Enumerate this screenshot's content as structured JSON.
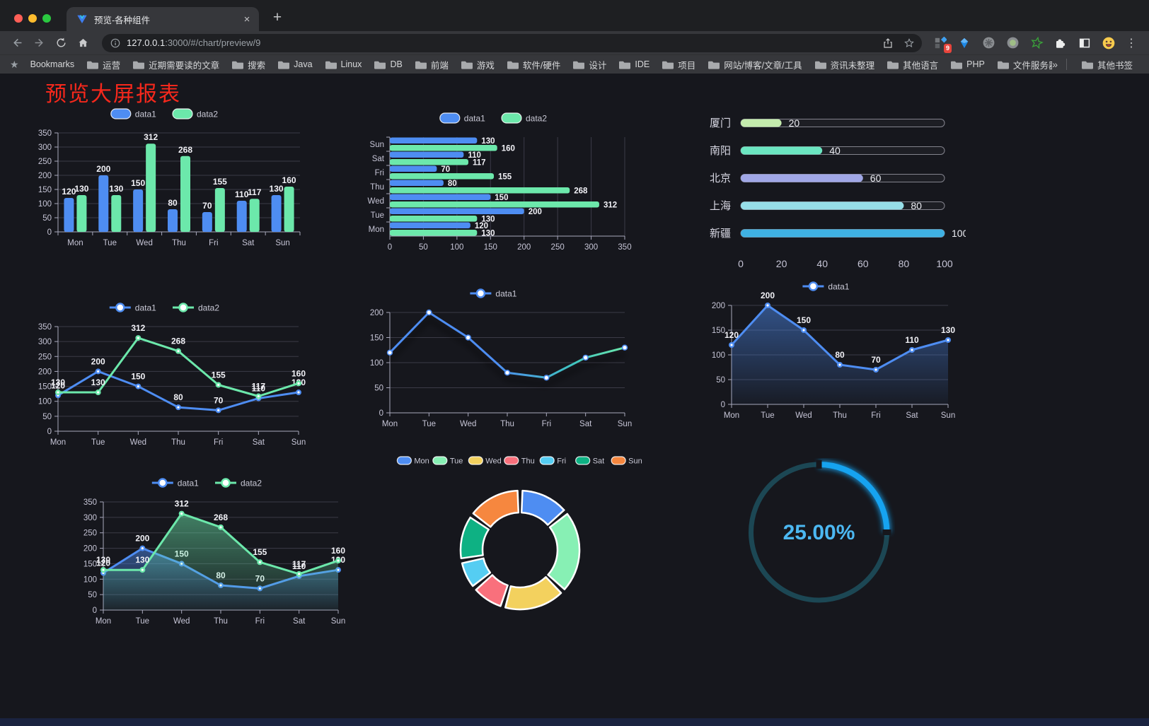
{
  "browser": {
    "tab_title": "预览-各种组件",
    "url_host": "127.0.0.1",
    "url_rest": ":3000/#/chart/preview/9",
    "extension_badge": "9",
    "bookmarks_label": "Bookmarks",
    "bookmarks": [
      "运营",
      "近期需要读的文章",
      "搜索",
      "Java",
      "Linux",
      "DB",
      "前端",
      "游戏",
      "软件/硬件",
      "设计",
      "IDE",
      "项目",
      "网站/博客/文章/工具",
      "资讯未整理",
      "其他语言",
      "PHP",
      "文件服务器"
    ],
    "other_bookmarks_label": "其他书签"
  },
  "glyphs": {
    "tab_close": "×",
    "new_tab": "+",
    "overflow_chevron": "»",
    "menu_dots": "⋮",
    "bookmarks_star": "★"
  },
  "page": {
    "title": "预览大屏报表",
    "title_color": "#f6281c"
  },
  "colors": {
    "series_blue": "#4e8df2",
    "series_green": "#6ce8ab",
    "axis_text": "#c6c5d6",
    "grid_line": "#3b3b47",
    "axis_line": "#a8a8bc",
    "value_label": "#f2f2f7"
  },
  "chart_data": [
    {
      "id": "grouped-bar",
      "type": "bar",
      "legend_marker": "rect",
      "categories": [
        "Mon",
        "Tue",
        "Wed",
        "Thu",
        "Fri",
        "Sat",
        "Sun"
      ],
      "series": [
        {
          "name": "data1",
          "color": "#4e8df2",
          "values": [
            120,
            200,
            150,
            80,
            70,
            110,
            130
          ]
        },
        {
          "name": "data2",
          "color": "#6ce8ab",
          "values": [
            130,
            130,
            312,
            268,
            155,
            117,
            160
          ]
        }
      ],
      "ylim": [
        0,
        350
      ],
      "ystep": 50,
      "grid": true,
      "legend_position": "top",
      "value_labels": true
    },
    {
      "id": "horizontal-bar",
      "type": "hbar",
      "legend_marker": "rect",
      "categories": [
        "Mon",
        "Tue",
        "Wed",
        "Thu",
        "Fri",
        "Sat",
        "Sun"
      ],
      "axis_order_top_to_bottom": [
        "Sun",
        "Sat",
        "Fri",
        "Thu",
        "Wed",
        "Tue",
        "Mon"
      ],
      "series": [
        {
          "name": "data1",
          "color": "#4e8df2",
          "values": [
            120,
            200,
            150,
            80,
            70,
            110,
            130
          ]
        },
        {
          "name": "data2",
          "color": "#6ce8ab",
          "values": [
            130,
            130,
            312,
            268,
            155,
            117,
            160
          ]
        }
      ],
      "xlim": [
        0,
        350
      ],
      "xstep": 50,
      "grid": true,
      "legend_position": "top",
      "value_labels": true
    },
    {
      "id": "city-progress",
      "type": "progress",
      "rows": [
        {
          "label": "厦门",
          "value": 20,
          "color": "#c4ebad"
        },
        {
          "label": "南阳",
          "value": 40,
          "color": "#6be6c1"
        },
        {
          "label": "北京",
          "value": 60,
          "color": "#a0a7e6"
        },
        {
          "label": "上海",
          "value": 80,
          "color": "#96dee8"
        },
        {
          "label": "新疆",
          "value": 100,
          "color": "#3fb1e3"
        }
      ],
      "xlim": [
        0,
        100
      ],
      "xticks": [
        0,
        20,
        40,
        60,
        80,
        100
      ]
    },
    {
      "id": "line-two-series",
      "type": "line",
      "legend_marker": "line",
      "categories": [
        "Mon",
        "Tue",
        "Wed",
        "Thu",
        "Fri",
        "Sat",
        "Sun"
      ],
      "series": [
        {
          "name": "data1",
          "color": "#4e8df2",
          "values": [
            120,
            200,
            150,
            80,
            70,
            110,
            130
          ]
        },
        {
          "name": "data2",
          "color": "#6ce8ab",
          "values": [
            130,
            130,
            312,
            268,
            155,
            117,
            160
          ]
        }
      ],
      "ylim": [
        0,
        350
      ],
      "ystep": 50,
      "grid": true,
      "legend_position": "top",
      "value_labels": true
    },
    {
      "id": "gradient-line",
      "type": "line",
      "legend_marker": "line",
      "categories": [
        "Mon",
        "Tue",
        "Wed",
        "Thu",
        "Fri",
        "Sat",
        "Sun"
      ],
      "series": [
        {
          "name": "data1",
          "color": "#4e8df2",
          "marker": "hollow",
          "shadow": true,
          "gradient_stops": [
            {
              "offset": 0,
              "color": "#4e8df2"
            },
            {
              "offset": 0.45,
              "color": "#4e8df2"
            },
            {
              "offset": 0.78,
              "color": "#3fc4c0"
            },
            {
              "offset": 1,
              "color": "#6ce8ab"
            }
          ],
          "values": [
            120,
            200,
            150,
            80,
            70,
            110,
            130
          ]
        }
      ],
      "ylim": [
        0,
        200
      ],
      "ystep": 50,
      "grid": true,
      "legend_position": "top",
      "value_labels": false
    },
    {
      "id": "area-single",
      "type": "line",
      "legend_marker": "line",
      "categories": [
        "Mon",
        "Tue",
        "Wed",
        "Thu",
        "Fri",
        "Sat",
        "Sun"
      ],
      "series": [
        {
          "name": "data1",
          "color": "#4e8df2",
          "area": true,
          "values": [
            120,
            200,
            150,
            80,
            70,
            110,
            130
          ]
        }
      ],
      "ylim": [
        0,
        200
      ],
      "ystep": 50,
      "grid": true,
      "legend_position": "top",
      "value_labels": true
    },
    {
      "id": "area-two-series",
      "type": "line",
      "legend_marker": "line",
      "categories": [
        "Mon",
        "Tue",
        "Wed",
        "Thu",
        "Fri",
        "Sat",
        "Sun"
      ],
      "series": [
        {
          "name": "data1",
          "color": "#4e8df2",
          "area": true,
          "values": [
            120,
            200,
            150,
            80,
            70,
            110,
            130
          ]
        },
        {
          "name": "data2",
          "color": "#6ce8ab",
          "area": true,
          "values": [
            130,
            130,
            312,
            268,
            155,
            117,
            160
          ]
        }
      ],
      "ylim": [
        0,
        350
      ],
      "ystep": 50,
      "grid": true,
      "legend_position": "top",
      "value_labels": true
    },
    {
      "id": "donut",
      "type": "pie",
      "legend_marker": "rect-small",
      "categories": [
        "Mon",
        "Tue",
        "Wed",
        "Thu",
        "Fri",
        "Sat",
        "Sun"
      ],
      "values": [
        120,
        200,
        150,
        80,
        70,
        110,
        130
      ],
      "colors": [
        "#4e8df2",
        "#87f0b4",
        "#f3d15e",
        "#f9707c",
        "#55cdf2",
        "#0eb183",
        "#f6873f"
      ],
      "inner_radius_ratio": 0.63,
      "legend_position": "top"
    },
    {
      "id": "gauge",
      "type": "gauge",
      "percent": 25,
      "value_label": "25.00%",
      "arc_color": "#16a3f0",
      "track_color": "#1c4754",
      "text_color": "#4cb8f2"
    }
  ]
}
